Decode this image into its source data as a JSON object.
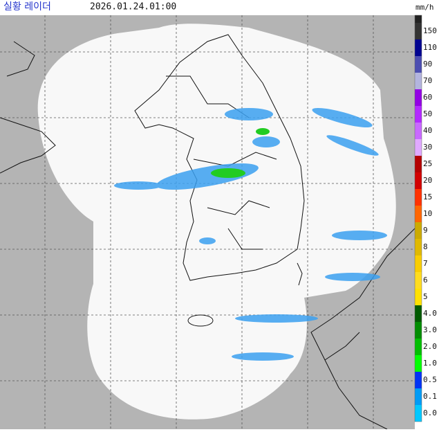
{
  "header": {
    "title": "실황 레이더",
    "time": "2026.01.24.01:00",
    "unit": "mm/h"
  },
  "legend": {
    "items": [
      {
        "label": "150",
        "color": "#333333"
      },
      {
        "label": "110",
        "color": "#000390"
      },
      {
        "label": "90",
        "color": "#4c4eb1"
      },
      {
        "label": "70",
        "color": "#b3b4de"
      },
      {
        "label": "60",
        "color": "#9300e4"
      },
      {
        "label": "50",
        "color": "#b329ff"
      },
      {
        "label": "40",
        "color": "#c969ff"
      },
      {
        "label": "30",
        "color": "#e0a9ff"
      },
      {
        "label": "25",
        "color": "#b40000"
      },
      {
        "label": "20",
        "color": "#d20000"
      },
      {
        "label": "15",
        "color": "#ff3200"
      },
      {
        "label": "10",
        "color": "#ff6600"
      },
      {
        "label": "9",
        "color": "#ccaa00"
      },
      {
        "label": "8",
        "color": "#e0b900"
      },
      {
        "label": "7",
        "color": "#f9cd00"
      },
      {
        "label": "6",
        "color": "#ffdc1f"
      },
      {
        "label": "5",
        "color": "#ffe100"
      },
      {
        "label": "4.0",
        "color": "#005a00"
      },
      {
        "label": "3.0",
        "color": "#008c00"
      },
      {
        "label": "2.0",
        "color": "#00be00"
      },
      {
        "label": "1.0",
        "color": "#00ff00"
      },
      {
        "label": "0.5",
        "color": "#0033f5"
      },
      {
        "label": "0.1",
        "color": "#009bf5"
      },
      {
        "label": "0.0",
        "color": "#00c8ff"
      }
    ]
  }
}
